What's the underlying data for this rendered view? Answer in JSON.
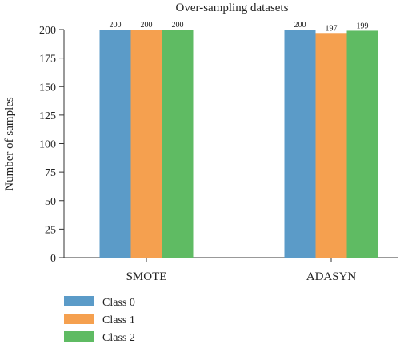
{
  "chart_data": {
    "type": "bar",
    "title": "Over-sampling datasets",
    "xlabel": "",
    "ylabel": "Number of samples",
    "categories": [
      "SMOTE",
      "ADASYN"
    ],
    "series": [
      {
        "name": "Class 0",
        "color": "#5b9bc8",
        "values": [
          200,
          200
        ],
        "labels": [
          "200",
          "200"
        ]
      },
      {
        "name": "Class 1",
        "color": "#f5a04f",
        "values": [
          200,
          197
        ],
        "labels": [
          "200",
          "197"
        ]
      },
      {
        "name": "Class 2",
        "color": "#5fbb63",
        "values": [
          200,
          199
        ],
        "labels": [
          "200",
          "199"
        ]
      }
    ],
    "ylim": [
      0,
      200
    ],
    "yticks": [
      0,
      25,
      50,
      75,
      100,
      125,
      150,
      175,
      200
    ],
    "ytick_labels": [
      "0",
      "25",
      "50",
      "75",
      "100",
      "125",
      "150",
      "175",
      "200"
    ],
    "grid": false,
    "legend_position": "bottom-left"
  }
}
